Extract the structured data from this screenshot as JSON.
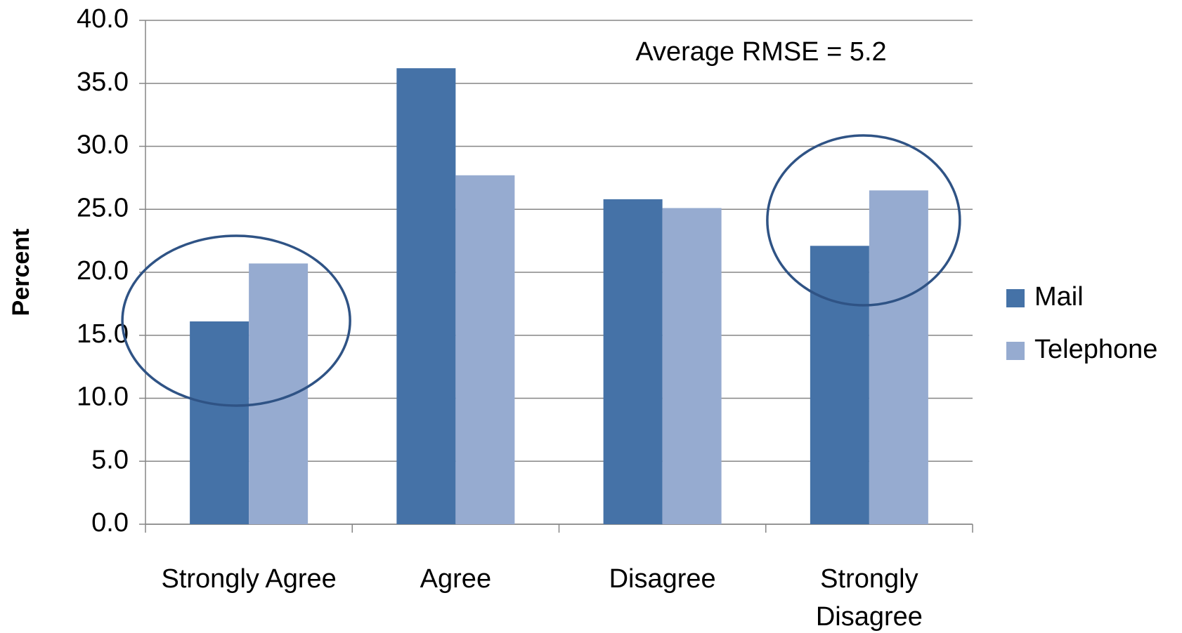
{
  "chart_data": {
    "type": "bar",
    "y_label": "Percent",
    "annotation": "Average RMSE = 5.2",
    "categories": [
      "Strongly Agree",
      "Agree",
      "Disagree",
      "Strongly Disagree"
    ],
    "series": [
      {
        "name": "Mail",
        "color": "#4572a7",
        "values": [
          16.1,
          36.2,
          25.8,
          22.1
        ]
      },
      {
        "name": "Telephone",
        "color": "#96abd0",
        "values": [
          20.7,
          27.7,
          25.1,
          26.5
        ]
      }
    ],
    "ylim": [
      0,
      40
    ],
    "yticks": [
      {
        "value": 0,
        "label": "0.0"
      },
      {
        "value": 5,
        "label": "5.0"
      },
      {
        "value": 10,
        "label": "10.0"
      },
      {
        "value": 15,
        "label": "15.0"
      },
      {
        "value": 20,
        "label": "20.0"
      },
      {
        "value": 25,
        "label": "25.0"
      },
      {
        "value": 30,
        "label": "30.0"
      },
      {
        "value": 35,
        "label": "35.0"
      },
      {
        "value": 40,
        "label": "40.0"
      }
    ],
    "grid": true,
    "legend": "right"
  }
}
